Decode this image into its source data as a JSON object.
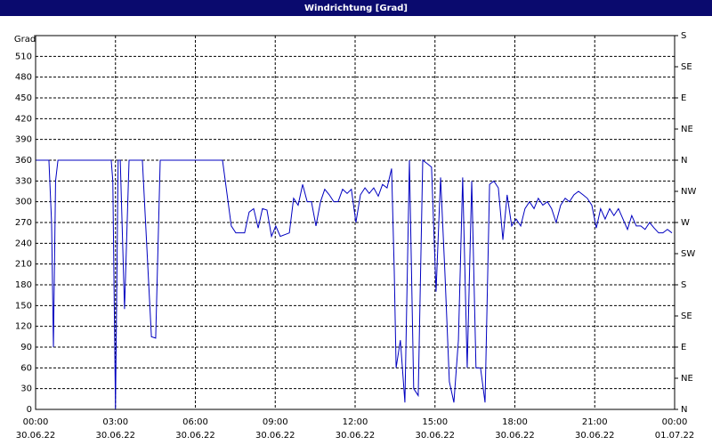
{
  "chart_data": {
    "type": "line",
    "title": "Windrichtung [Grad]",
    "ylabel": "Grad",
    "x": [
      0,
      0.5,
      0.6,
      0.67,
      0.75,
      0.84,
      2.84,
      2.9,
      3.0,
      3.1,
      3.18,
      3.34,
      3.51,
      4.01,
      4.35,
      4.51,
      4.68,
      7.02,
      7.35,
      7.52,
      7.85,
      8.02,
      8.19,
      8.36,
      8.52,
      8.69,
      8.86,
      9.02,
      9.19,
      9.53,
      9.69,
      9.86,
      10.03,
      10.2,
      10.36,
      10.53,
      10.7,
      10.86,
      11.03,
      11.2,
      11.36,
      11.53,
      11.7,
      11.86,
      12.03,
      12.2,
      12.37,
      12.53,
      12.7,
      12.87,
      13.03,
      13.2,
      13.37,
      13.47,
      13.54,
      13.7,
      13.87,
      14.04,
      14.2,
      14.37,
      14.54,
      14.71,
      14.87,
      15.04,
      15.21,
      15.37,
      15.54,
      15.71,
      15.88,
      16.04,
      16.21,
      16.38,
      16.54,
      16.71,
      16.88,
      17.05,
      17.21,
      17.38,
      17.55,
      17.71,
      17.88,
      18.05,
      18.22,
      18.38,
      18.55,
      18.72,
      18.88,
      19.05,
      19.22,
      19.38,
      19.55,
      19.72,
      19.89,
      20.05,
      20.22,
      20.39,
      20.56,
      20.72,
      20.89,
      21.06,
      21.22,
      21.39,
      21.56,
      21.72,
      21.89,
      22.06,
      22.23,
      22.39,
      22.56,
      22.73,
      22.89,
      23.06,
      23.23,
      23.4,
      23.56,
      23.73,
      23.9
    ],
    "series": [
      {
        "name": "Windrichtung",
        "color": "#0000c0",
        "values": [
          360,
          360,
          270,
          90,
          330,
          360,
          360,
          330,
          0,
          360,
          360,
          145,
          360,
          360,
          105,
          103,
          360,
          360,
          265,
          255,
          255,
          285,
          290,
          262,
          290,
          288,
          250,
          265,
          250,
          255,
          305,
          295,
          325,
          300,
          300,
          265,
          300,
          318,
          310,
          300,
          300,
          318,
          312,
          318,
          270,
          310,
          320,
          312,
          320,
          308,
          325,
          320,
          348,
          200,
          60,
          100,
          10,
          360,
          30,
          20,
          360,
          355,
          350,
          170,
          335,
          200,
          40,
          10,
          100,
          335,
          60,
          330,
          60,
          60,
          10,
          325,
          330,
          320,
          245,
          310,
          265,
          275,
          265,
          290,
          300,
          290,
          305,
          295,
          300,
          290,
          270,
          295,
          305,
          300,
          310,
          315,
          310,
          305,
          295,
          262,
          290,
          275,
          290,
          280,
          290,
          275,
          260,
          280,
          265,
          265,
          260,
          270,
          262,
          255,
          255,
          260,
          255
        ]
      }
    ],
    "xlim": [
      0,
      24
    ],
    "xticks": [
      {
        "value": 0,
        "label": "00:00",
        "date": "30.06.22"
      },
      {
        "value": 3,
        "label": "03:00",
        "date": "30.06.22"
      },
      {
        "value": 6,
        "label": "06:00",
        "date": "30.06.22"
      },
      {
        "value": 9,
        "label": "09:00",
        "date": "30.06.22"
      },
      {
        "value": 12,
        "label": "12:00",
        "date": "30.06.22"
      },
      {
        "value": 15,
        "label": "15:00",
        "date": "30.06.22"
      },
      {
        "value": 18,
        "label": "18:00",
        "date": "30.06.22"
      },
      {
        "value": 21,
        "label": "21:00",
        "date": "30.06.22"
      },
      {
        "value": 24,
        "label": "00:00",
        "date": "01.07.22"
      }
    ],
    "ylim": [
      0,
      540
    ],
    "yticks": [
      0,
      30,
      60,
      90,
      120,
      150,
      180,
      210,
      240,
      270,
      300,
      330,
      360,
      390,
      420,
      450,
      480,
      510
    ],
    "y2lim": [
      0,
      540
    ],
    "y2ticks": [
      {
        "value": 0,
        "label": "N"
      },
      {
        "value": 45,
        "label": "NE"
      },
      {
        "value": 90,
        "label": "E"
      },
      {
        "value": 135,
        "label": "SE"
      },
      {
        "value": 180,
        "label": "S"
      },
      {
        "value": 225,
        "label": "SW"
      },
      {
        "value": 270,
        "label": "W"
      },
      {
        "value": 315,
        "label": "NW"
      },
      {
        "value": 360,
        "label": "N"
      },
      {
        "value": 405,
        "label": "NE"
      },
      {
        "value": 450,
        "label": "E"
      },
      {
        "value": 495,
        "label": "SE"
      },
      {
        "value": 540,
        "label": "S"
      }
    ],
    "grid": true
  }
}
